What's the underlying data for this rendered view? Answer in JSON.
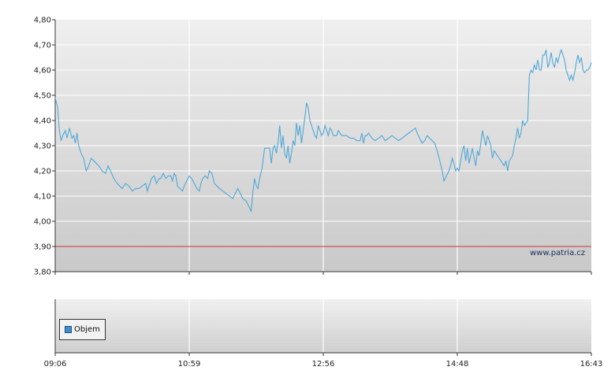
{
  "chart_data": [
    {
      "type": "line",
      "ylim": [
        3.8,
        4.8
      ],
      "y_ticks": [
        "4,80",
        "4,70",
        "4,60",
        "4,50",
        "4,40",
        "4,30",
        "4,20",
        "4,10",
        "4,00",
        "3,90",
        "3,80"
      ],
      "x_ticks": [
        "09:06",
        "10:59",
        "12:56",
        "14:48",
        "16:43"
      ],
      "reference_line": 3.9,
      "colors": {
        "line": "#4fa8d6",
        "reference": "#cc3333",
        "grid": "#ffffff"
      },
      "grid": true,
      "watermark": "www.patria.cz",
      "series": [
        {
          "values": [
            [
              0.0,
              4.49
            ],
            [
              1.5,
              4.45
            ],
            [
              2.5,
              4.36
            ],
            [
              3.5,
              4.32
            ],
            [
              4.5,
              4.34
            ],
            [
              6,
              4.36
            ],
            [
              7,
              4.33
            ],
            [
              8.5,
              4.37
            ],
            [
              10,
              4.33
            ],
            [
              11,
              4.34
            ],
            [
              12,
              4.31
            ],
            [
              13,
              4.35
            ],
            [
              14,
              4.3
            ],
            [
              15.5,
              4.27
            ],
            [
              17,
              4.25
            ],
            [
              18.5,
              4.2
            ],
            [
              20,
              4.22
            ],
            [
              21.5,
              4.25
            ],
            [
              23,
              4.24
            ],
            [
              26,
              4.22
            ],
            [
              28,
              4.2
            ],
            [
              30,
              4.19
            ],
            [
              31.5,
              4.22
            ],
            [
              33,
              4.2
            ],
            [
              35,
              4.17
            ],
            [
              37,
              4.15
            ],
            [
              38.5,
              4.14
            ],
            [
              40,
              4.13
            ],
            [
              42,
              4.15
            ],
            [
              44,
              4.14
            ],
            [
              46,
              4.12
            ],
            [
              48,
              4.13
            ],
            [
              50,
              4.13
            ],
            [
              52,
              4.14
            ],
            [
              54,
              4.15
            ],
            [
              55,
              4.12
            ],
            [
              56,
              4.14
            ],
            [
              57.5,
              4.17
            ],
            [
              59,
              4.18
            ],
            [
              60.5,
              4.15
            ],
            [
              62,
              4.17
            ],
            [
              63,
              4.17
            ],
            [
              64.5,
              4.19
            ],
            [
              66,
              4.17
            ],
            [
              67.5,
              4.18
            ],
            [
              69,
              4.18
            ],
            [
              70,
              4.16
            ],
            [
              71,
              4.19
            ],
            [
              72,
              4.18
            ],
            [
              73,
              4.14
            ],
            [
              74.5,
              4.13
            ],
            [
              76,
              4.12
            ],
            [
              77,
              4.14
            ],
            [
              78.5,
              4.16
            ],
            [
              80,
              4.18
            ],
            [
              81.5,
              4.17
            ],
            [
              83,
              4.15
            ],
            [
              84.5,
              4.13
            ],
            [
              86,
              4.12
            ],
            [
              87,
              4.15
            ],
            [
              88,
              4.17
            ],
            [
              89.5,
              4.18
            ],
            [
              91,
              4.17
            ],
            [
              92,
              4.2
            ],
            [
              93.5,
              4.19
            ],
            [
              95,
              4.15
            ],
            [
              96.5,
              4.14
            ],
            [
              98,
              4.13
            ],
            [
              100,
              4.12
            ],
            [
              102,
              4.11
            ],
            [
              104,
              4.1
            ],
            [
              106,
              4.09
            ],
            [
              107.5,
              4.11
            ],
            [
              109,
              4.13
            ],
            [
              110.5,
              4.11
            ],
            [
              112,
              4.09
            ],
            [
              114,
              4.08
            ],
            [
              115.5,
              4.06
            ],
            [
              117,
              4.04
            ],
            [
              118,
              4.12
            ],
            [
              119,
              4.17
            ],
            [
              120,
              4.14
            ],
            [
              121,
              4.13
            ],
            [
              122,
              4.17
            ],
            [
              123.5,
              4.21
            ],
            [
              125,
              4.29
            ],
            [
              126.5,
              4.29
            ],
            [
              128,
              4.29
            ],
            [
              129,
              4.23
            ],
            [
              130,
              4.29
            ],
            [
              131,
              4.3
            ],
            [
              132,
              4.27
            ],
            [
              133,
              4.31
            ],
            [
              134,
              4.38
            ],
            [
              135,
              4.29
            ],
            [
              136,
              4.34
            ],
            [
              137,
              4.27
            ],
            [
              138,
              4.25
            ],
            [
              139,
              4.3
            ],
            [
              140,
              4.23
            ],
            [
              141,
              4.27
            ],
            [
              142,
              4.32
            ],
            [
              143,
              4.3
            ],
            [
              144,
              4.39
            ],
            [
              145,
              4.34
            ],
            [
              146,
              4.38
            ],
            [
              147,
              4.31
            ],
            [
              148,
              4.36
            ],
            [
              149,
              4.41
            ],
            [
              150,
              4.47
            ],
            [
              151,
              4.45
            ],
            [
              152,
              4.4
            ],
            [
              153.5,
              4.37
            ],
            [
              155,
              4.34
            ],
            [
              156,
              4.33
            ],
            [
              157,
              4.38
            ],
            [
              158,
              4.36
            ],
            [
              159,
              4.34
            ],
            [
              160,
              4.35
            ],
            [
              161,
              4.38
            ],
            [
              162,
              4.36
            ],
            [
              163,
              4.34
            ],
            [
              164,
              4.37
            ],
            [
              165,
              4.36
            ],
            [
              166,
              4.34
            ],
            [
              167,
              4.34
            ],
            [
              168,
              4.34
            ],
            [
              169,
              4.36
            ],
            [
              170,
              4.35
            ],
            [
              171,
              4.34
            ],
            [
              172,
              4.34
            ],
            [
              174,
              4.34
            ],
            [
              176,
              4.33
            ],
            [
              178,
              4.33
            ],
            [
              180,
              4.32
            ],
            [
              182,
              4.32
            ],
            [
              183,
              4.35
            ],
            [
              184,
              4.31
            ],
            [
              185,
              4.34
            ],
            [
              186,
              4.34
            ],
            [
              187,
              4.35
            ],
            [
              189,
              4.33
            ],
            [
              191,
              4.32
            ],
            [
              193,
              4.33
            ],
            [
              195,
              4.34
            ],
            [
              197,
              4.32
            ],
            [
              199,
              4.33
            ],
            [
              201,
              4.34
            ],
            [
              203,
              4.33
            ],
            [
              205,
              4.32
            ],
            [
              207,
              4.33
            ],
            [
              209,
              4.34
            ],
            [
              211,
              4.35
            ],
            [
              213,
              4.36
            ],
            [
              215,
              4.37
            ],
            [
              216,
              4.35
            ],
            [
              217.5,
              4.33
            ],
            [
              219,
              4.31
            ],
            [
              220.5,
              4.32
            ],
            [
              222,
              4.34
            ],
            [
              223.5,
              4.33
            ],
            [
              225,
              4.32
            ],
            [
              226.5,
              4.31
            ],
            [
              228,
              4.28
            ],
            [
              229.5,
              4.24
            ],
            [
              231,
              4.2
            ],
            [
              232,
              4.16
            ],
            [
              233.5,
              4.18
            ],
            [
              235,
              4.2
            ],
            [
              236,
              4.22
            ],
            [
              237,
              4.25
            ],
            [
              238,
              4.23
            ],
            [
              239,
              4.2
            ],
            [
              240,
              4.21
            ],
            [
              241,
              4.2
            ],
            [
              242,
              4.24
            ],
            [
              243,
              4.28
            ],
            [
              244,
              4.3
            ],
            [
              245,
              4.24
            ],
            [
              246,
              4.29
            ],
            [
              247,
              4.23
            ],
            [
              248,
              4.26
            ],
            [
              249,
              4.29
            ],
            [
              250,
              4.25
            ],
            [
              251,
              4.22
            ],
            [
              252,
              4.28
            ],
            [
              253,
              4.26
            ],
            [
              254,
              4.31
            ],
            [
              255,
              4.36
            ],
            [
              256,
              4.33
            ],
            [
              257,
              4.3
            ],
            [
              258,
              4.34
            ],
            [
              259,
              4.32
            ],
            [
              260,
              4.3
            ],
            [
              261,
              4.25
            ],
            [
              262,
              4.28
            ],
            [
              263,
              4.27
            ],
            [
              264,
              4.26
            ],
            [
              265,
              4.25
            ],
            [
              266,
              4.24
            ],
            [
              267,
              4.23
            ],
            [
              268,
              4.22
            ],
            [
              269,
              4.24
            ],
            [
              270,
              4.2
            ],
            [
              271,
              4.24
            ],
            [
              272,
              4.25
            ],
            [
              273,
              4.26
            ],
            [
              274,
              4.3
            ],
            [
              275,
              4.33
            ],
            [
              276,
              4.37
            ],
            [
              277,
              4.33
            ],
            [
              278,
              4.35
            ],
            [
              279,
              4.4
            ],
            [
              280,
              4.38
            ],
            [
              281,
              4.39
            ],
            [
              282,
              4.4
            ],
            [
              283,
              4.58
            ],
            [
              284,
              4.6
            ],
            [
              285,
              4.59
            ],
            [
              286,
              4.62
            ],
            [
              287,
              4.6
            ],
            [
              288,
              4.64
            ],
            [
              289,
              4.6
            ],
            [
              290,
              4.6
            ],
            [
              291,
              4.66
            ],
            [
              292,
              4.66
            ],
            [
              293,
              4.68
            ],
            [
              294,
              4.61
            ],
            [
              295,
              4.63
            ],
            [
              296,
              4.67
            ],
            [
              297,
              4.63
            ],
            [
              298,
              4.61
            ],
            [
              299,
              4.65
            ],
            [
              300,
              4.63
            ],
            [
              301,
              4.66
            ],
            [
              302,
              4.68
            ],
            [
              303,
              4.66
            ],
            [
              304,
              4.64
            ],
            [
              305,
              4.6
            ],
            [
              306,
              4.58
            ],
            [
              307,
              4.56
            ],
            [
              308,
              4.58
            ],
            [
              309,
              4.56
            ],
            [
              310,
              4.59
            ],
            [
              311,
              4.63
            ],
            [
              312,
              4.66
            ],
            [
              313,
              4.63
            ],
            [
              314,
              4.65
            ],
            [
              315,
              4.6
            ],
            [
              316,
              4.59
            ],
            [
              317,
              4.6
            ],
            [
              318,
              4.6
            ],
            [
              319,
              4.61
            ],
            [
              320,
              4.63
            ]
          ]
        }
      ]
    },
    {
      "type": "bar",
      "series": [
        {
          "name": "Objem",
          "values": []
        }
      ],
      "x_ticks": [
        "09:06",
        "10:59",
        "12:56",
        "14:48",
        "16:43"
      ]
    }
  ]
}
